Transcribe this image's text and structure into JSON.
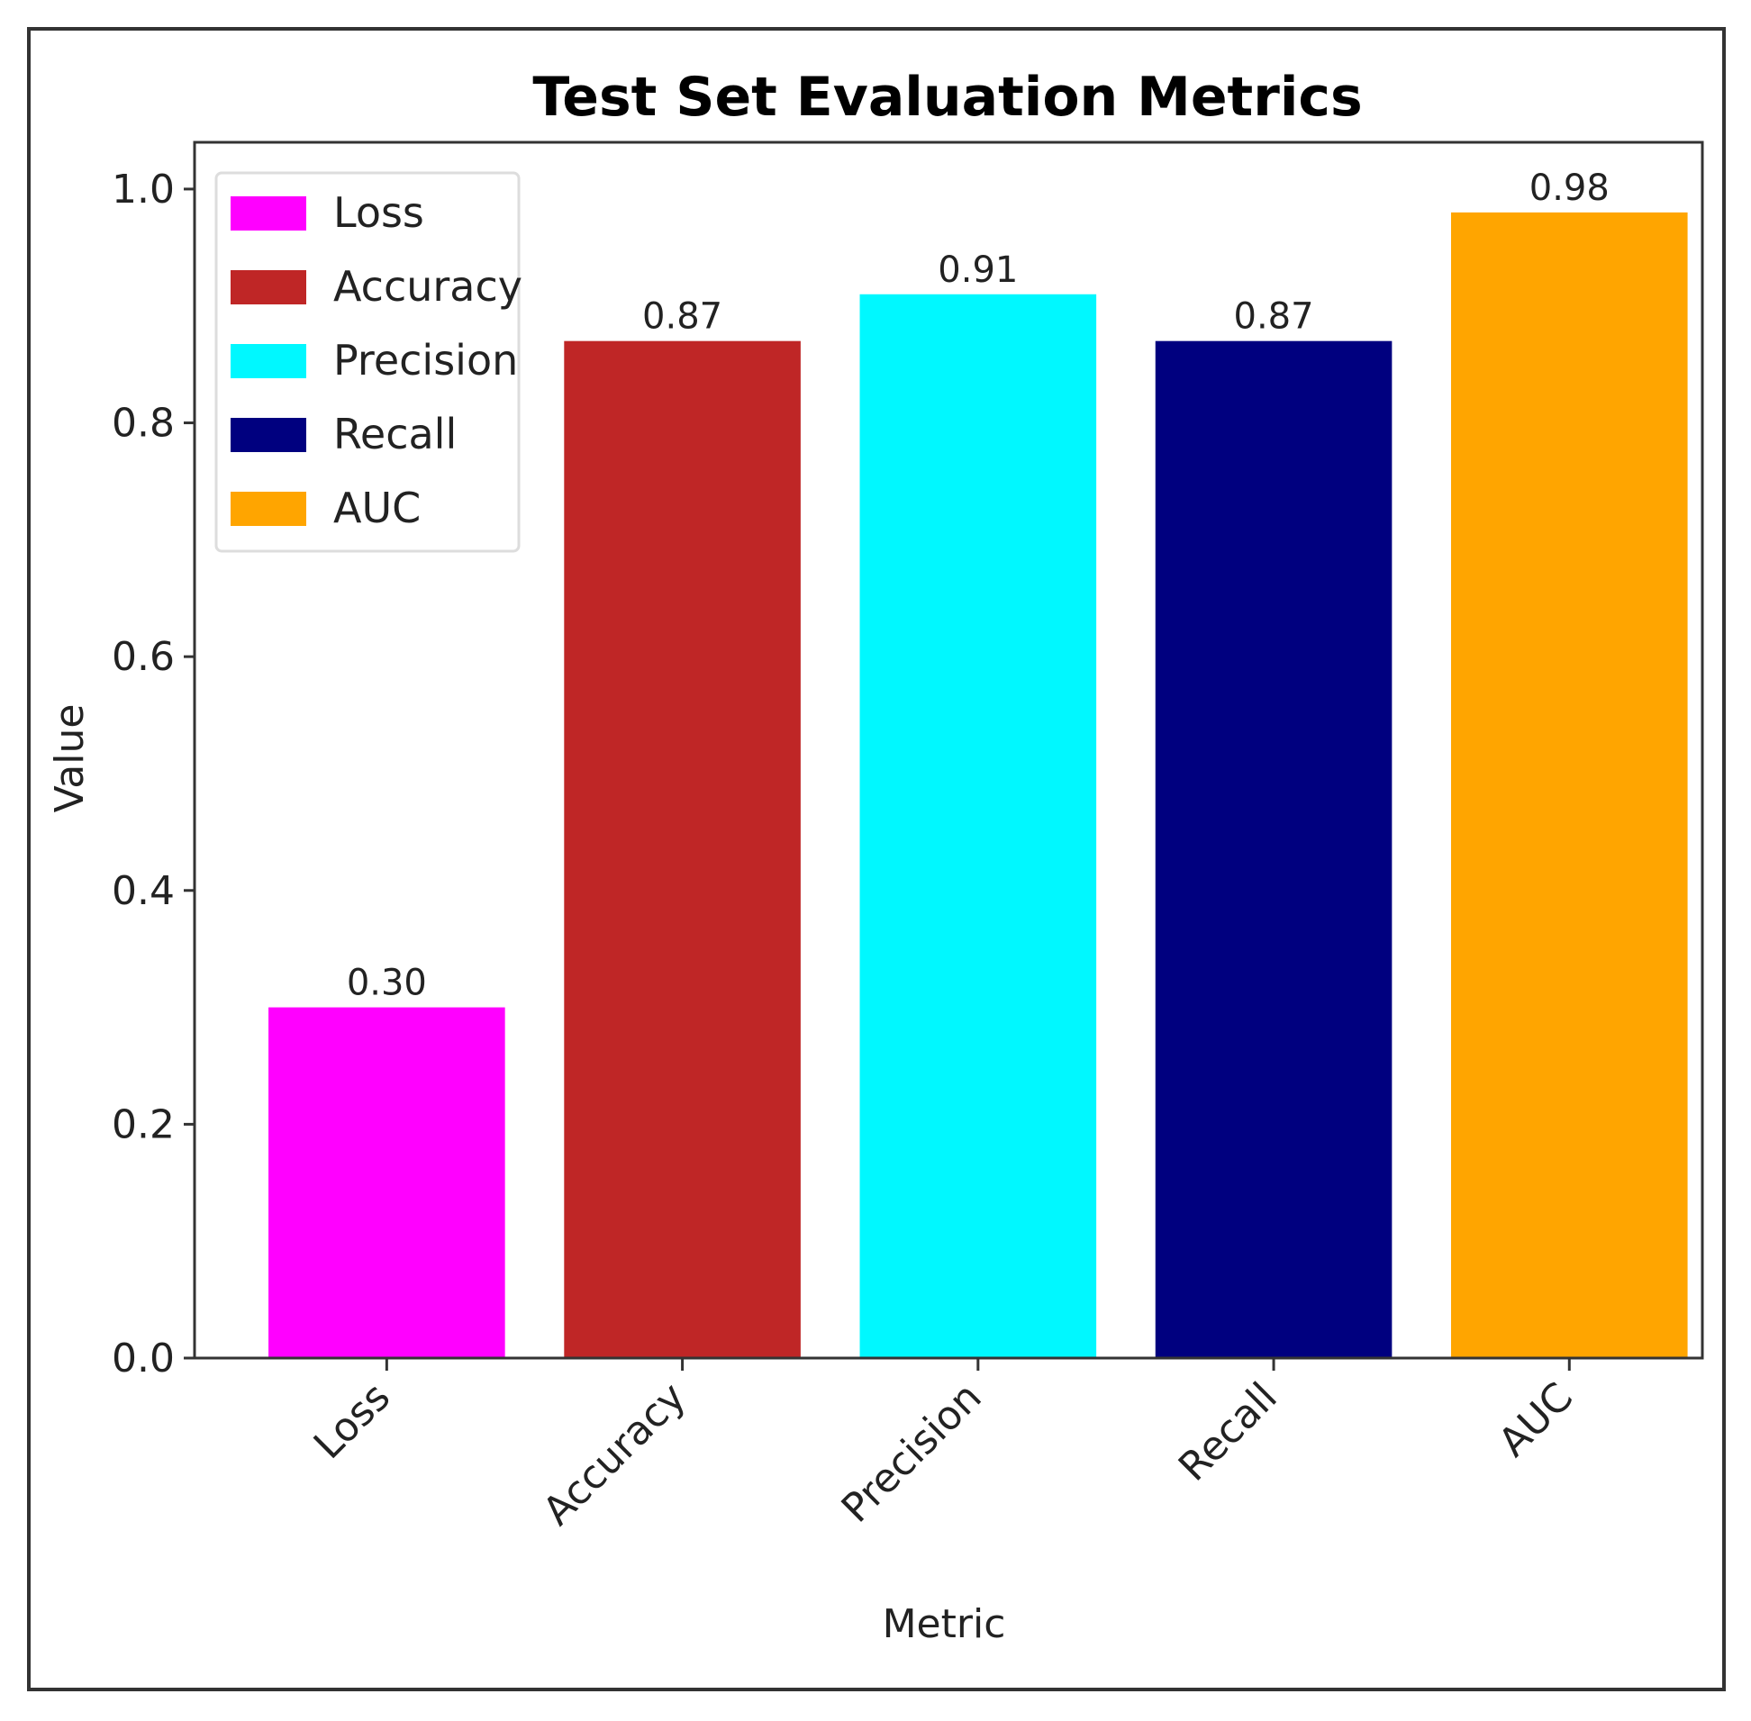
{
  "chart_data": {
    "type": "bar",
    "title": "Test Set Evaluation Metrics",
    "xlabel": "Metric",
    "ylabel": "Value",
    "categories": [
      "Loss",
      "Accuracy",
      "Precision",
      "Recall",
      "AUC"
    ],
    "values": [
      0.3,
      0.87,
      0.91,
      0.87,
      0.98
    ],
    "value_labels": [
      "0.30",
      "0.87",
      "0.91",
      "0.87",
      "0.98"
    ],
    "colors": [
      "#ff00ff",
      "#bf2626",
      "#00f8ff",
      "#00007f",
      "#ffa500"
    ],
    "ylim": [
      0,
      1.04
    ],
    "yticks": [
      0.0,
      0.2,
      0.4,
      0.6,
      0.8,
      1.0
    ],
    "ytick_labels": [
      "0.0",
      "0.2",
      "0.4",
      "0.6",
      "0.8",
      "1.0"
    ],
    "grid": false,
    "legend": {
      "position": "top-left",
      "entries": [
        "Loss",
        "Accuracy",
        "Precision",
        "Recall",
        "AUC"
      ]
    }
  }
}
